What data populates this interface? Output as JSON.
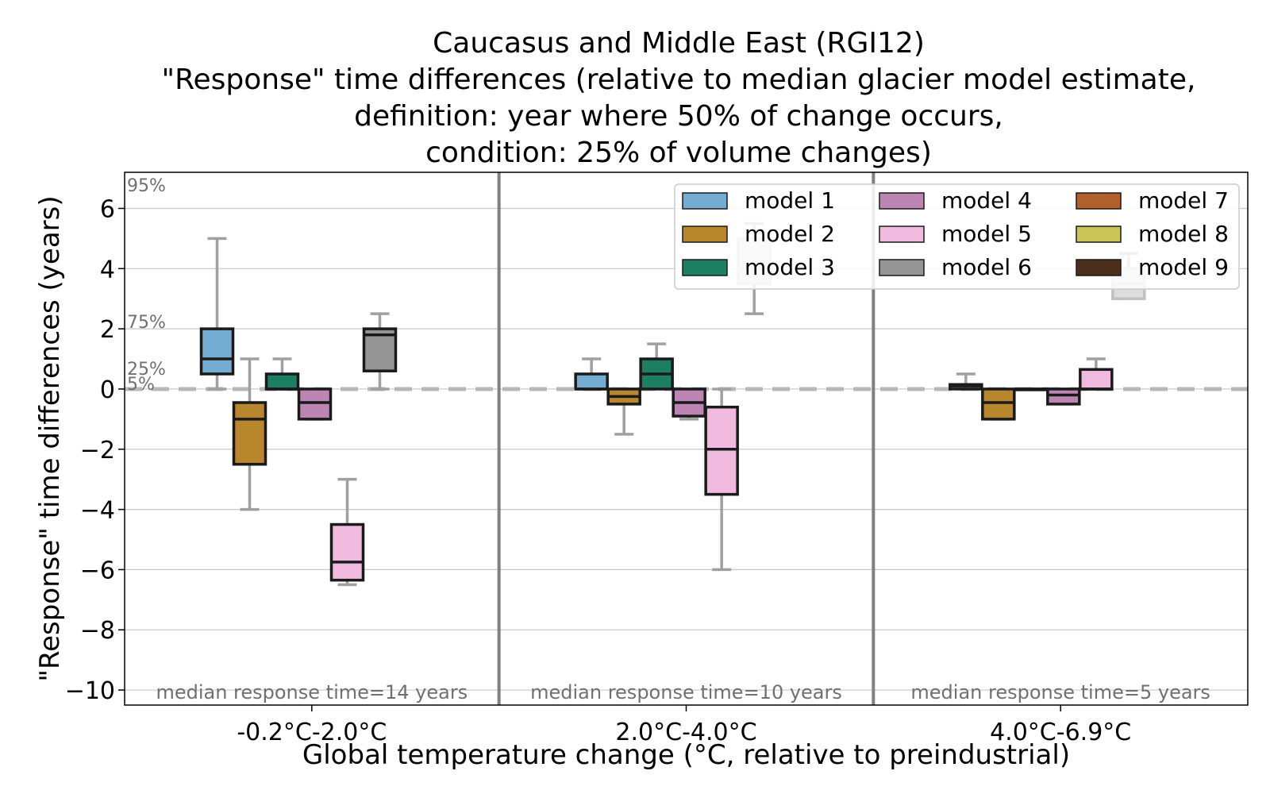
{
  "chart_data": {
    "type": "box",
    "title_lines": [
      "Caucasus and Middle East (RGI12)",
      "\"Response\" time differences (relative to median glacier model estimate,",
      "definition: year where 50% of change occurs,",
      "condition: 25% of volume changes)"
    ],
    "xlabel": "Global temperature change (°C, relative to preindustrial)",
    "ylabel": "\"Response\" time differences (years)",
    "ylim": [
      -10.5,
      7.2
    ],
    "yticks": [
      6,
      4,
      2,
      0,
      -2,
      -4,
      -6,
      -8,
      -10
    ],
    "ytick_labels": [
      "6",
      "4",
      "2",
      "0",
      "−2",
      "−4",
      "−6",
      "−8",
      "−10"
    ],
    "grid": true,
    "zero_line": "dashed",
    "percentile_labels": {
      "p95": "95%",
      "p75": "75%",
      "p25": "25%",
      "p5": "5%"
    },
    "groups": [
      {
        "label": "-0.2°C-2.0°C",
        "annotation": "median response time=14 years"
      },
      {
        "label": "2.0°C-4.0°C",
        "annotation": "median response time=10 years"
      },
      {
        "label": "4.0°C-6.9°C",
        "annotation": "median response time=5 years"
      }
    ],
    "legend": {
      "placement": "top-right",
      "entries": [
        {
          "name": "model 1",
          "color": "#74add1"
        },
        {
          "name": "model 2",
          "color": "#b8862c"
        },
        {
          "name": "model 3",
          "color": "#1c7f61"
        },
        {
          "name": "model 4",
          "color": "#bd85b3"
        },
        {
          "name": "model 5",
          "color": "#efbade"
        },
        {
          "name": "model 6",
          "color": "#959595"
        },
        {
          "name": "model 7",
          "color": "#b0602a"
        },
        {
          "name": "model 8",
          "color": "#cbc456"
        },
        {
          "name": "model 9",
          "color": "#4b2e1c"
        }
      ]
    },
    "boxes": [
      {
        "group": 0,
        "model": 1,
        "p5": 0,
        "q1": 0.5,
        "median": 1.0,
        "q3": 2.0,
        "p95": 5.0
      },
      {
        "group": 0,
        "model": 2,
        "p5": -4.0,
        "q1": -2.5,
        "median": -1.0,
        "q3": -0.45,
        "p95": 1.0
      },
      {
        "group": 0,
        "model": 3,
        "p5": 0,
        "q1": 0,
        "median": 0,
        "q3": 0.5,
        "p95": 1.0
      },
      {
        "group": 0,
        "model": 4,
        "p5": -1.0,
        "q1": -1.0,
        "median": -0.45,
        "q3": 0,
        "p95": 0
      },
      {
        "group": 0,
        "model": 5,
        "p5": -6.5,
        "q1": -6.35,
        "median": -5.75,
        "q3": -4.5,
        "p95": -3.0
      },
      {
        "group": 0,
        "model": 6,
        "p5": 0,
        "q1": 0.6,
        "median": 1.8,
        "q3": 2.0,
        "p95": 2.5
      },
      {
        "group": 1,
        "model": 1,
        "p5": 0,
        "q1": 0,
        "median": 0,
        "q3": 0.5,
        "p95": 1.0
      },
      {
        "group": 1,
        "model": 2,
        "p5": -1.5,
        "q1": -0.5,
        "median": -0.25,
        "q3": 0,
        "p95": 0
      },
      {
        "group": 1,
        "model": 3,
        "p5": 0,
        "q1": 0,
        "median": 0.5,
        "q3": 1.0,
        "p95": 1.5
      },
      {
        "group": 1,
        "model": 4,
        "p5": -1.0,
        "q1": -0.9,
        "median": -0.45,
        "q3": 0,
        "p95": 0
      },
      {
        "group": 1,
        "model": 5,
        "p5": -6.0,
        "q1": -3.5,
        "median": -2.0,
        "q3": -0.6,
        "p95": 0
      },
      {
        "group": 1,
        "model": 6,
        "p5": 2.5,
        "q1": 3.5,
        "median": 4.0,
        "q3": 5.0,
        "p95": 5.5
      },
      {
        "group": 2,
        "model": 1,
        "p5": 0,
        "q1": 0,
        "median": 0.1,
        "q3": 0.15,
        "p95": 0.5
      },
      {
        "group": 2,
        "model": 2,
        "p5": -1.0,
        "q1": -1.0,
        "median": -0.45,
        "q3": 0,
        "p95": 0
      },
      {
        "group": 2,
        "model": 3,
        "p5": 0,
        "q1": 0,
        "median": 0,
        "q3": 0,
        "p95": 0
      },
      {
        "group": 2,
        "model": 4,
        "p5": -0.5,
        "q1": -0.5,
        "median": -0.2,
        "q3": 0,
        "p95": 0
      },
      {
        "group": 2,
        "model": 5,
        "p5": 0,
        "q1": 0,
        "median": 0,
        "q3": 0.65,
        "p95": 1.0
      },
      {
        "group": 2,
        "model": 6,
        "p5": 3.0,
        "q1": 3.0,
        "median": 3.5,
        "q3": 4.0,
        "p95": 4.5
      }
    ]
  }
}
